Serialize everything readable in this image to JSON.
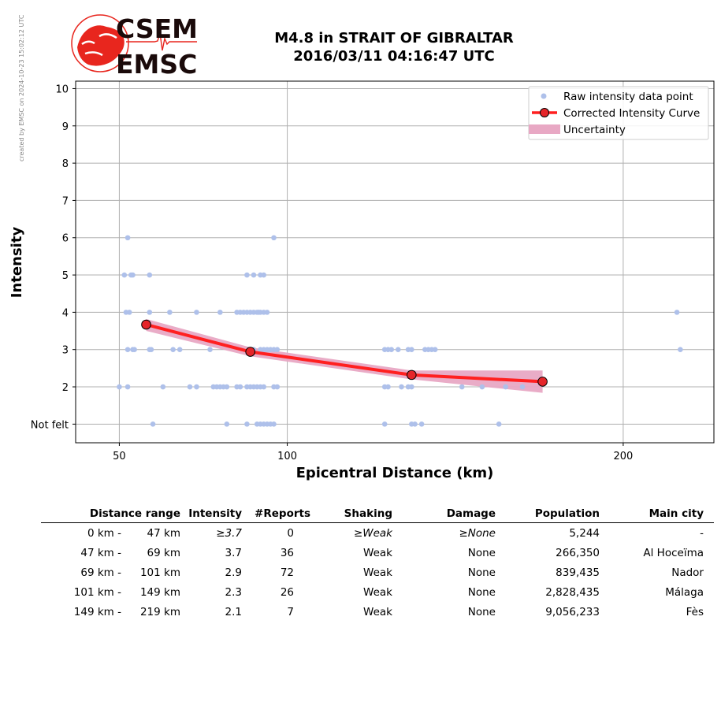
{
  "logo": {
    "line1": "CSEM",
    "line2": "EMSC",
    "brand_color": "#e8261e"
  },
  "credit": "created by EMSC on 2024-10-23 15:02:12 UTC",
  "title": {
    "line1": "M4.8 in STRAIT OF GIBRALTAR",
    "line2": "2016/03/11 04:16:47 UTC"
  },
  "chart_data": {
    "type": "scatter",
    "xlabel": "Epicentral Distance (km)",
    "ylabel": "Intensity",
    "xlim": [
      37,
      227
    ],
    "ylim": [
      0.5,
      10.2
    ],
    "x_ticks": [
      50,
      100,
      200
    ],
    "y_ticks": [
      1,
      2,
      3,
      4,
      5,
      6,
      7,
      8,
      9,
      10
    ],
    "y_tick_labels": [
      "Not felt",
      "2",
      "3",
      "4",
      "5",
      "6",
      "7",
      "8",
      "9",
      "10"
    ],
    "grid": true,
    "legend_position": "top-right",
    "legend": [
      "Raw intensity data point",
      "Corrected Intensity Curve",
      "Uncertainty"
    ],
    "colors": {
      "raw": "#aec0ea",
      "curve": "#ff2020",
      "marker": "#e5252a",
      "uncertainty": "#e8a8c4"
    },
    "raw_points": [
      [
        52.5,
        6
      ],
      [
        96,
        6
      ],
      [
        51.5,
        5
      ],
      [
        53.5,
        5
      ],
      [
        54,
        5
      ],
      [
        59,
        5
      ],
      [
        88,
        5
      ],
      [
        90,
        5
      ],
      [
        92,
        5
      ],
      [
        93,
        5
      ],
      [
        52,
        4
      ],
      [
        53,
        4
      ],
      [
        59,
        4
      ],
      [
        65,
        4
      ],
      [
        73,
        4
      ],
      [
        80,
        4
      ],
      [
        85,
        4
      ],
      [
        86,
        4
      ],
      [
        87,
        4
      ],
      [
        88,
        4
      ],
      [
        89,
        4
      ],
      [
        90,
        4
      ],
      [
        91,
        4
      ],
      [
        92,
        4
      ],
      [
        93,
        4
      ],
      [
        94,
        4
      ],
      [
        91.5,
        4
      ],
      [
        216,
        4
      ],
      [
        52.5,
        3
      ],
      [
        54,
        3
      ],
      [
        54.5,
        3
      ],
      [
        59,
        3
      ],
      [
        59.5,
        3
      ],
      [
        66,
        3
      ],
      [
        68,
        3
      ],
      [
        77,
        3
      ],
      [
        90,
        3
      ],
      [
        92,
        3
      ],
      [
        93,
        3
      ],
      [
        94,
        3
      ],
      [
        95,
        3
      ],
      [
        96,
        3
      ],
      [
        97,
        3
      ],
      [
        129,
        3
      ],
      [
        130,
        3
      ],
      [
        131,
        3
      ],
      [
        133,
        3
      ],
      [
        136,
        3
      ],
      [
        137,
        3
      ],
      [
        141,
        3
      ],
      [
        142,
        3
      ],
      [
        143,
        3
      ],
      [
        144,
        3
      ],
      [
        217,
        3
      ],
      [
        50,
        2
      ],
      [
        52.5,
        2
      ],
      [
        63,
        2
      ],
      [
        71,
        2
      ],
      [
        73,
        2
      ],
      [
        78,
        2
      ],
      [
        79,
        2
      ],
      [
        80,
        2
      ],
      [
        81,
        2
      ],
      [
        82,
        2
      ],
      [
        85,
        2
      ],
      [
        86,
        2
      ],
      [
        88,
        2
      ],
      [
        89,
        2
      ],
      [
        90,
        2
      ],
      [
        91,
        2
      ],
      [
        92,
        2
      ],
      [
        93,
        2
      ],
      [
        96,
        2
      ],
      [
        97,
        2
      ],
      [
        129,
        2
      ],
      [
        130,
        2
      ],
      [
        134,
        2
      ],
      [
        136,
        2
      ],
      [
        137,
        2
      ],
      [
        152,
        2
      ],
      [
        158,
        2
      ],
      [
        165,
        2
      ],
      [
        170,
        2
      ],
      [
        60,
        1
      ],
      [
        82,
        1
      ],
      [
        88,
        1
      ],
      [
        91,
        1
      ],
      [
        92,
        1
      ],
      [
        93,
        1
      ],
      [
        94,
        1
      ],
      [
        95,
        1
      ],
      [
        96,
        1
      ],
      [
        129,
        1
      ],
      [
        137,
        1
      ],
      [
        138,
        1
      ],
      [
        140,
        1
      ],
      [
        163,
        1
      ]
    ],
    "curve": {
      "x": [
        58,
        89,
        137,
        176
      ],
      "y": [
        3.67,
        2.94,
        2.32,
        2.14
      ]
    },
    "uncertainty": {
      "x": [
        58,
        89,
        137,
        176
      ],
      "lower": [
        3.5,
        2.82,
        2.2,
        1.84
      ],
      "upper": [
        3.82,
        3.06,
        2.44,
        2.44
      ]
    }
  },
  "table": {
    "headers": {
      "distance": "Distance range",
      "intensity": "Intensity",
      "reports": "#Reports",
      "shaking": "Shaking",
      "damage": "Damage",
      "population": "Population",
      "city": "Main city"
    },
    "rows": [
      {
        "from": "0 km -",
        "to": "47 km",
        "intensity": "≥3.7",
        "reports": "0",
        "shaking": "≥Weak",
        "damage": "≥None",
        "population": "5,244",
        "city": "-"
      },
      {
        "from": "47 km -",
        "to": "69 km",
        "intensity": "3.7",
        "reports": "36",
        "shaking": "Weak",
        "damage": "None",
        "population": "266,350",
        "city": "Al Hoceïma"
      },
      {
        "from": "69 km -",
        "to": "101 km",
        "intensity": "2.9",
        "reports": "72",
        "shaking": "Weak",
        "damage": "None",
        "population": "839,435",
        "city": "Nador"
      },
      {
        "from": "101 km -",
        "to": "149 km",
        "intensity": "2.3",
        "reports": "26",
        "shaking": "Weak",
        "damage": "None",
        "population": "2,828,435",
        "city": "Málaga"
      },
      {
        "from": "149 km -",
        "to": "219 km",
        "intensity": "2.1",
        "reports": "7",
        "shaking": "Weak",
        "damage": "None",
        "population": "9,056,233",
        "city": "Fès"
      }
    ]
  }
}
